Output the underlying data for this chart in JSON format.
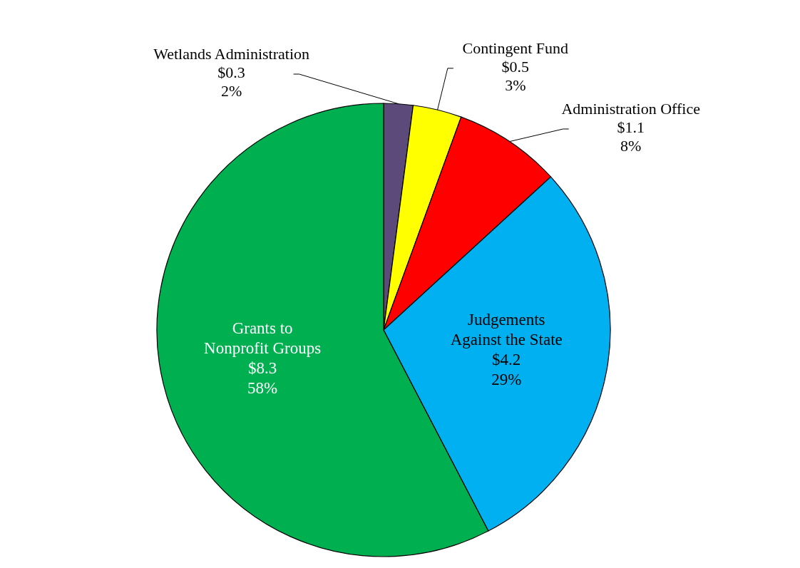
{
  "chart_data": {
    "type": "pie",
    "categories": [
      "Wetlands Administration",
      "Contingent Fund",
      "Administration Office",
      "Judgements Against the State",
      "Grants to Nonprofit Groups"
    ],
    "values": [
      0.3,
      0.5,
      1.1,
      4.2,
      8.3
    ],
    "colors": [
      "#5b4a7a",
      "#ffff00",
      "#ff0000",
      "#00b0f0",
      "#00b050"
    ],
    "value_labels": [
      "$0.3\n2%",
      "$0.5\n3%",
      "$1.1\n8%",
      "$4.2\n29%",
      "$8.3\n58%"
    ],
    "legend": false
  }
}
